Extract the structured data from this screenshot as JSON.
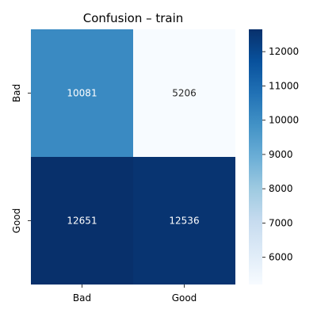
{
  "chart_data": {
    "type": "heatmap",
    "title": "Confusion – train",
    "xlabel": "",
    "ylabel": "",
    "x_categories": [
      "Bad",
      "Good"
    ],
    "y_categories": [
      "Bad",
      "Good"
    ],
    "values": [
      [
        10081,
        5206
      ],
      [
        12651,
        12536
      ]
    ],
    "colormap": "Blues",
    "colorbar": {
      "min": 5206,
      "max": 12651,
      "ticks": [
        6000,
        7000,
        8000,
        9000,
        10000,
        11000,
        12000
      ]
    },
    "cell_text_color": "#ffffff",
    "grid": false
  }
}
